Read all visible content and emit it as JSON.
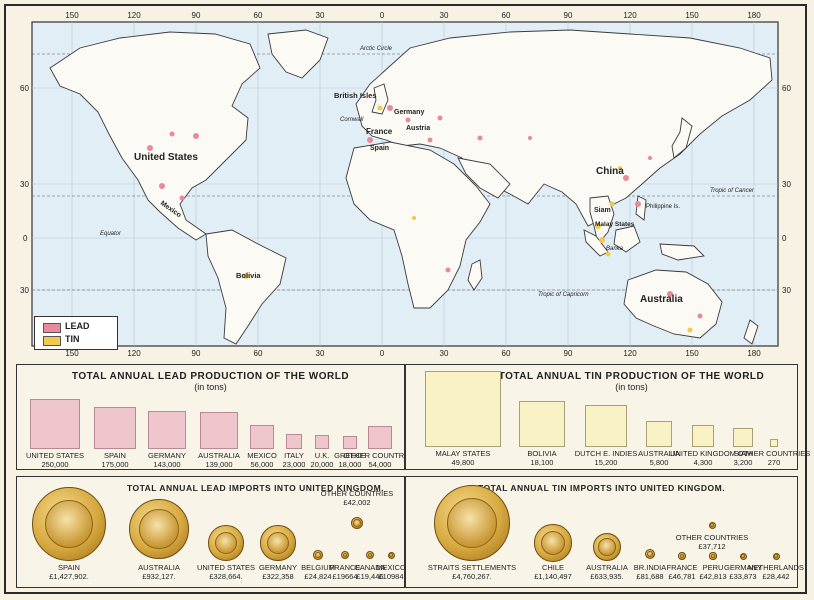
{
  "map": {
    "top_longitudes": [
      "150",
      "120",
      "90",
      "60",
      "30",
      "0",
      "30",
      "60",
      "90",
      "120",
      "150",
      "180"
    ],
    "bottom_longitudes": [
      "150",
      "120",
      "90",
      "60",
      "30",
      "0",
      "30",
      "60",
      "90",
      "120",
      "150",
      "180"
    ],
    "latitudes_left": [
      "60",
      "30",
      "0",
      "30"
    ],
    "latitudes_right": [
      "60",
      "30",
      "0",
      "30"
    ],
    "labels": {
      "arctic": "Arctic Circle",
      "equator": "Equator",
      "cancer": "Tropic of Cancer",
      "capricorn": "Tropic of Capricorn",
      "british_isles": "British Isles",
      "cornwall": "Cornwall",
      "germany": "Germany",
      "austria": "Austria",
      "france": "France",
      "spain": "Spain",
      "united_states": "United States",
      "mexico": "Mexico",
      "bolivia": "Bolivia",
      "china": "China",
      "siam": "Siam",
      "malay": "Malay States",
      "banka": "Banka",
      "philippine": "Philippine Is.",
      "australia": "Australia"
    },
    "legend": {
      "lead": "LEAD",
      "tin": "TIN",
      "lead_color": "#e88a9c",
      "tin_color": "#f2c94c"
    },
    "ocean_color": "#e2eef6",
    "land_color": "#fbfaf4"
  },
  "lead_production": {
    "title": "TOTAL ANNUAL LEAD PRODUCTION OF THE WORLD",
    "subtitle": "(in tons)",
    "items": [
      {
        "name": "UNITED STATES",
        "value": "250,000"
      },
      {
        "name": "SPAIN",
        "value": "175,000"
      },
      {
        "name": "GERMANY",
        "value": "143,000"
      },
      {
        "name": "AUSTRALIA",
        "value": "139,000"
      },
      {
        "name": "MEXICO",
        "value": "56,000"
      },
      {
        "name": "ITALY",
        "value": "23,000"
      },
      {
        "name": "U.K.",
        "value": "20,000"
      },
      {
        "name": "GREECE",
        "value": "18,000"
      },
      {
        "name": "OTHER COUNTRIES",
        "value": "54,000"
      }
    ]
  },
  "tin_production": {
    "title": "TOTAL ANNUAL TIN PRODUCTION OF THE WORLD",
    "subtitle": "(in tons)",
    "items": [
      {
        "name": "MALAY STATES",
        "value": "49,800"
      },
      {
        "name": "BOLIVIA",
        "value": "18,100"
      },
      {
        "name": "DUTCH E. INDIES",
        "value": "15,200"
      },
      {
        "name": "AUSTRALIA",
        "value": "5,800"
      },
      {
        "name": "UNITED KINGDOM",
        "value": "4,300"
      },
      {
        "name": "SIAM",
        "value": "3,200"
      },
      {
        "name": "OTHER COUNTRIES",
        "value": "270"
      }
    ]
  },
  "lead_imports": {
    "title": "TOTAL ANNUAL LEAD IMPORTS INTO UNITED KINGDOM.",
    "items": [
      {
        "name": "SPAIN",
        "value": "£1,427,902."
      },
      {
        "name": "AUSTRALIA",
        "value": "£932,127."
      },
      {
        "name": "UNITED STATES",
        "value": "£328,664."
      },
      {
        "name": "GERMANY",
        "value": "£322,358"
      },
      {
        "name": "BELGIUM",
        "value": "£24,824"
      },
      {
        "name": "FRANCE",
        "value": "£19664"
      },
      {
        "name": "CANADA",
        "value": "£19,446"
      },
      {
        "name": "MEXICO",
        "value": "£10984"
      },
      {
        "name": "OTHER COUNTRIES",
        "value": "£42,002"
      }
    ]
  },
  "tin_imports": {
    "title": "TOTAL ANNUAL TIN IMPORTS INTO UNITED KINGDOM.",
    "items": [
      {
        "name": "STRAITS SETTLEMENTS",
        "value": "£4,760,267."
      },
      {
        "name": "CHILE",
        "value": "£1,140,497"
      },
      {
        "name": "AUSTRALIA",
        "value": "£633,935."
      },
      {
        "name": "BR.INDIA",
        "value": "£81,688"
      },
      {
        "name": "FRANCE",
        "value": "£46,781"
      },
      {
        "name": "PERU",
        "value": "£42,813"
      },
      {
        "name": "GERMANY",
        "value": "£33,873"
      },
      {
        "name": "NETHERLANDS",
        "value": "£28,442"
      },
      {
        "name": "OTHER COUNTRIES",
        "value": "£37,712"
      }
    ]
  }
}
